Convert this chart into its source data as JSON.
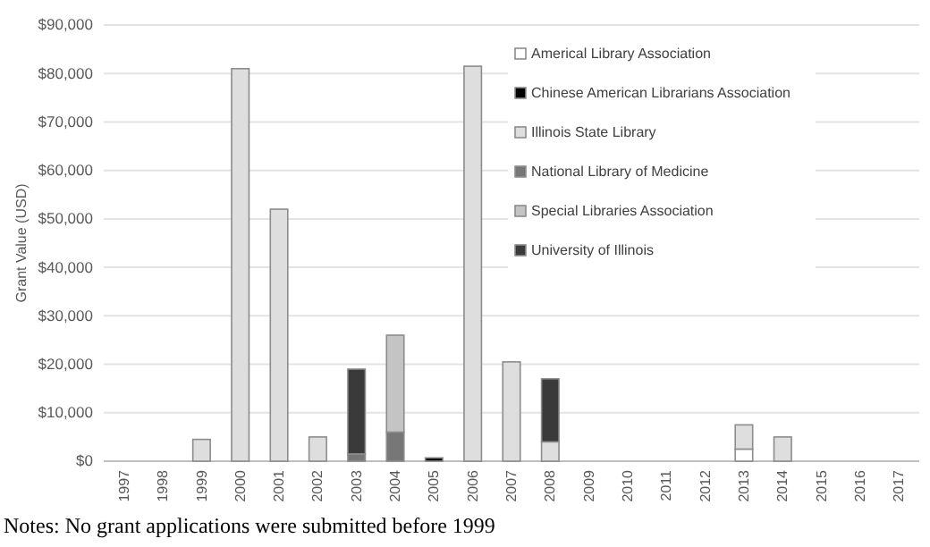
{
  "chart_data": {
    "type": "bar",
    "stacked": true,
    "ylabel": "Grant Value (USD)",
    "categories": [
      "1997",
      "1998",
      "1999",
      "2000",
      "2001",
      "2002",
      "2003",
      "2004",
      "2005",
      "2006",
      "2007",
      "2008",
      "2009",
      "2010",
      "2011",
      "2012",
      "2013",
      "2014",
      "2015",
      "2016",
      "2017"
    ],
    "series": [
      {
        "name": "Americal Library Association",
        "color": "#ffffff",
        "values": [
          null,
          null,
          null,
          null,
          null,
          null,
          null,
          null,
          null,
          null,
          null,
          null,
          null,
          null,
          null,
          null,
          2500,
          null,
          null,
          null,
          null
        ]
      },
      {
        "name": "Chinese American Librarians Association",
        "color": "#000000",
        "values": [
          null,
          null,
          null,
          null,
          null,
          null,
          null,
          null,
          700,
          null,
          null,
          null,
          null,
          null,
          null,
          null,
          null,
          null,
          null,
          null,
          null
        ]
      },
      {
        "name": "Illinois State Library",
        "color": "#dedede",
        "values": [
          null,
          null,
          4500,
          81000,
          52000,
          5000,
          null,
          null,
          null,
          81500,
          20500,
          4000,
          null,
          null,
          null,
          null,
          5000,
          5000,
          null,
          null,
          null
        ]
      },
      {
        "name": "National Library of Medicine",
        "color": "#777777",
        "values": [
          null,
          null,
          null,
          null,
          null,
          null,
          1500,
          6000,
          null,
          null,
          null,
          null,
          null,
          null,
          null,
          null,
          null,
          null,
          null,
          null,
          null
        ]
      },
      {
        "name": "Special Libraries Association",
        "color": "#c4c4c4",
        "values": [
          null,
          null,
          null,
          null,
          null,
          null,
          null,
          20000,
          null,
          null,
          null,
          null,
          null,
          null,
          null,
          null,
          null,
          null,
          null,
          null,
          null
        ]
      },
      {
        "name": "University of Illinois",
        "color": "#3a3a3a",
        "values": [
          null,
          null,
          null,
          null,
          null,
          null,
          17500,
          null,
          null,
          null,
          null,
          13000,
          null,
          null,
          null,
          null,
          null,
          null,
          null,
          null,
          null
        ]
      }
    ],
    "ylim": [
      0,
      90000
    ],
    "yticks": [
      {
        "value": 0,
        "label": "$0"
      },
      {
        "value": 10000,
        "label": "$10,000"
      },
      {
        "value": 20000,
        "label": "$20,000"
      },
      {
        "value": 30000,
        "label": "$30,000"
      },
      {
        "value": 40000,
        "label": "$40,000"
      },
      {
        "value": 50000,
        "label": "$50,000"
      },
      {
        "value": 60000,
        "label": "$60,000"
      },
      {
        "value": 70000,
        "label": "$70,000"
      },
      {
        "value": 80000,
        "label": "$80,000"
      },
      {
        "value": 90000,
        "label": "$90,000"
      }
    ],
    "grid": "y",
    "legend": "right",
    "annotations": [
      "Notes: No grant applications were submitted before 1999"
    ]
  }
}
